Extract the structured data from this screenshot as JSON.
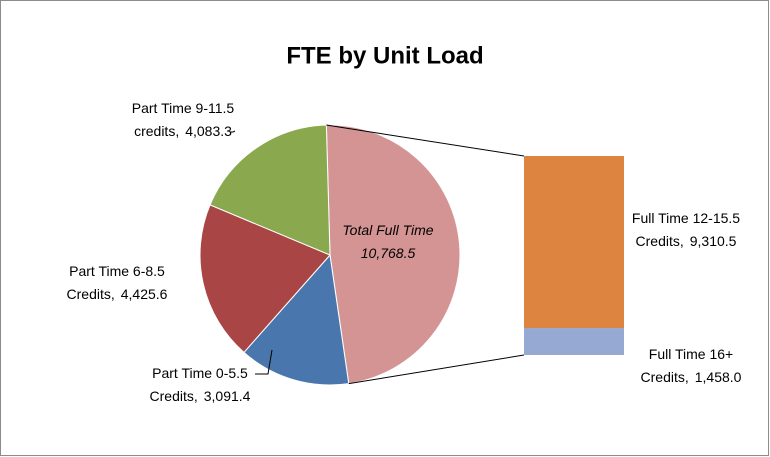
{
  "chart_data": {
    "type": "pie-of-bar",
    "title": "FTE by Unit Load",
    "categories": [
      "Total Full Time",
      "Part Time 0-5.5\nCredits,",
      "Part Time 6-8.5\nCredits,",
      "Part Time 9-11.5\ncredits,"
    ],
    "values": [
      10768.5,
      3091.4,
      4425.6,
      4083.3
    ],
    "value_labels": [
      "10,768.5",
      "3,091.4",
      "4,425.6",
      "4,083.3"
    ],
    "colors": [
      "#d49494",
      "#4a76ae",
      "#a94545",
      "#8aa84d"
    ],
    "bar": {
      "categories": [
        "Full Time 16+\nCredits,",
        "Full Time 12-15.5\nCredits,"
      ],
      "values": [
        1458.0,
        9310.5
      ],
      "value_labels": [
        "1,458.0",
        "9,310.5"
      ],
      "colors": [
        "#95a9d3",
        "#dd8441"
      ]
    }
  }
}
